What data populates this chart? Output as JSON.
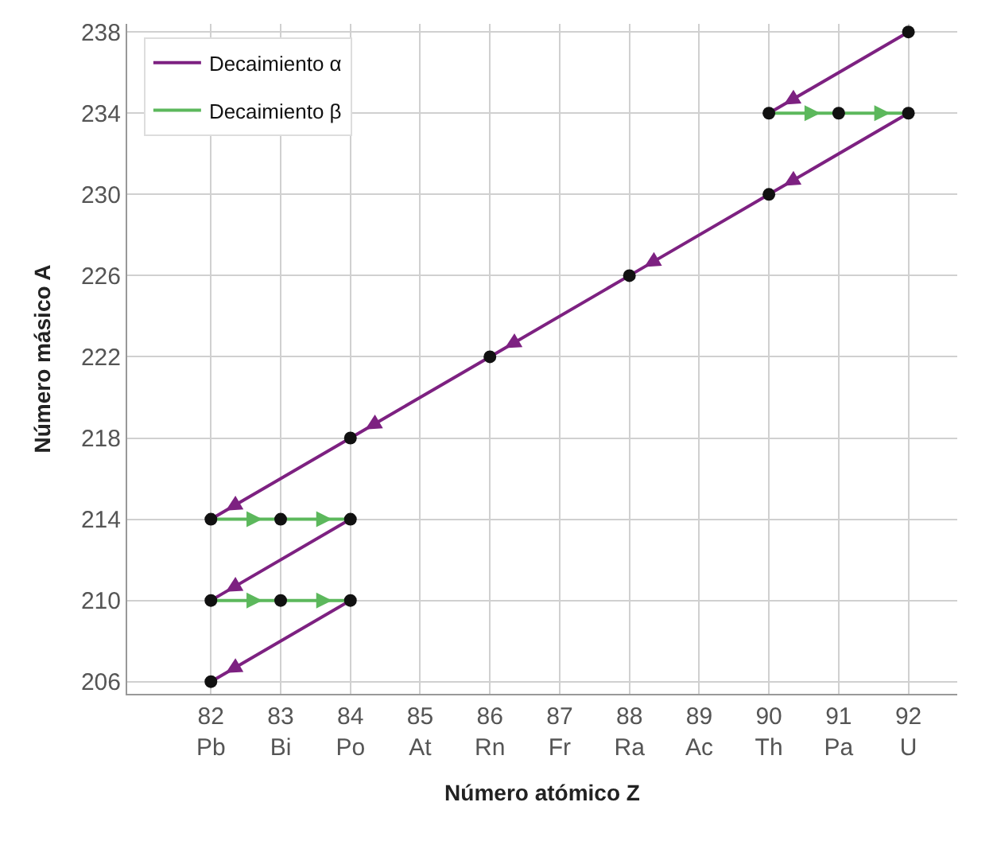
{
  "chart_data": {
    "type": "line",
    "xlabel": "Número atómico Z",
    "ylabel": "Número másico A",
    "xlim": [
      80.8,
      92.7
    ],
    "ylim": [
      205.4,
      238.4
    ],
    "xticks": [
      {
        "value": 82,
        "label": "82\nPb"
      },
      {
        "value": 83,
        "label": "83\nBi"
      },
      {
        "value": 84,
        "label": "84\nPo"
      },
      {
        "value": 85,
        "label": "85\nAt"
      },
      {
        "value": 86,
        "label": "86\nRn"
      },
      {
        "value": 87,
        "label": "87\nFr"
      },
      {
        "value": 88,
        "label": "88\nRa"
      },
      {
        "value": 89,
        "label": "89\nAc"
      },
      {
        "value": 90,
        "label": "90\nTh"
      },
      {
        "value": 91,
        "label": "91\nPa"
      },
      {
        "value": 92,
        "label": "92\nU"
      }
    ],
    "yticks": [
      206,
      210,
      214,
      218,
      222,
      226,
      230,
      234,
      238
    ],
    "grid": true,
    "legend": "top left",
    "series": [
      {
        "name": "Decaimiento α",
        "type": "line",
        "marker": "none",
        "color": "#7d2181",
        "x": [
          92,
          90
        ],
        "values": [
          238,
          234
        ]
      },
      {
        "marker": "none",
        "color": "#7d2181",
        "x": [
          92,
          90,
          88,
          86,
          84,
          82
        ],
        "values": [
          234,
          230,
          226,
          222,
          218,
          214
        ]
      },
      {
        "marker": "none",
        "color": "#7d2181",
        "x": [
          84,
          82
        ],
        "values": [
          214,
          210
        ]
      },
      {
        "marker": "none",
        "color": "#7d2181",
        "x": [
          84,
          82
        ],
        "values": [
          210,
          206
        ]
      },
      {
        "name": "Decaimiento β",
        "type": "line",
        "marker": "none",
        "color": "#5cb85c",
        "x": [
          90,
          91,
          92
        ],
        "values": [
          234,
          234,
          234
        ]
      },
      {
        "marker": "none",
        "color": "#5cb85c",
        "x": [
          82,
          83,
          84
        ],
        "values": [
          214,
          214,
          214
        ]
      },
      {
        "marker": "none",
        "color": "#5cb85c",
        "x": [
          82,
          83,
          84
        ],
        "values": [
          210,
          210,
          210
        ]
      },
      {
        "type": "scatter",
        "marker": "circle",
        "color": "#111111",
        "x": [
          92,
          90,
          91,
          92,
          90,
          88,
          86,
          84,
          82,
          83,
          84,
          82,
          83,
          84,
          82
        ],
        "values": [
          238,
          234,
          234,
          234,
          230,
          226,
          222,
          218,
          214,
          214,
          214,
          210,
          210,
          210,
          206
        ]
      }
    ]
  }
}
